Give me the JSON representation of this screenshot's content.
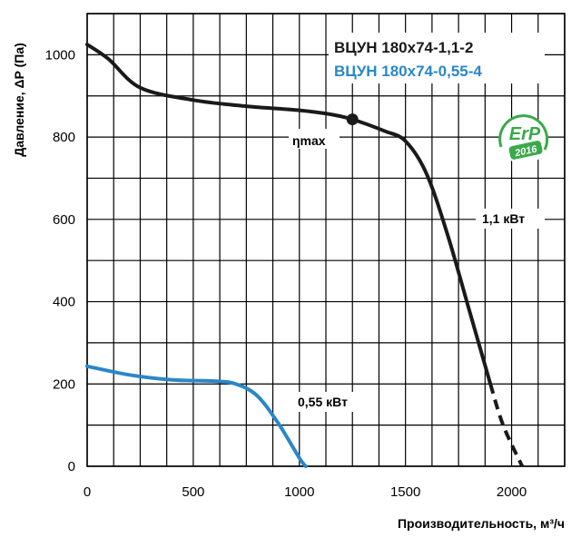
{
  "chart_data": {
    "type": "line",
    "xlabel": "Производительность,  м³/ч",
    "ylabel": "Давление, ΔP (Па)",
    "xlim": [
      0,
      2250
    ],
    "ylim": [
      0,
      1100
    ],
    "x_ticks": [
      0,
      500,
      1000,
      1500,
      2000
    ],
    "y_ticks": [
      0,
      200,
      400,
      600,
      800,
      1000
    ],
    "x_tick_labels": [
      "0",
      "500",
      "1000",
      "1500",
      "2000"
    ],
    "y_tick_labels": [
      "0",
      "200",
      "400",
      "600",
      "800",
      "1000"
    ],
    "grid": true,
    "legend_position": "top-right",
    "series": [
      {
        "name": "ВЦУН 180х74-1,1-2",
        "color": "#1a1a1a",
        "power_label": "1,1 кВт",
        "points": [
          [
            0,
            1025
          ],
          [
            100,
            990
          ],
          [
            250,
            920
          ],
          [
            500,
            890
          ],
          [
            750,
            875
          ],
          [
            1000,
            865
          ],
          [
            1150,
            855
          ],
          [
            1250,
            843
          ],
          [
            1400,
            815
          ],
          [
            1500,
            790
          ],
          [
            1600,
            710
          ],
          [
            1700,
            560
          ],
          [
            1800,
            380
          ],
          [
            1900,
            200
          ]
        ],
        "dashed_points": [
          [
            1900,
            200
          ],
          [
            1960,
            100
          ],
          [
            2050,
            0
          ]
        ]
      },
      {
        "name": "ВЦУН 180х74-0,55-4",
        "color": "#2a87c8",
        "power_label": "0,55 кВт",
        "points": [
          [
            0,
            243
          ],
          [
            200,
            222
          ],
          [
            400,
            210
          ],
          [
            600,
            207
          ],
          [
            700,
            200
          ],
          [
            800,
            172
          ],
          [
            900,
            105
          ],
          [
            1000,
            20
          ],
          [
            1030,
            0
          ]
        ]
      }
    ],
    "annotations": [
      {
        "text": "ηmax",
        "x": 1250,
        "y": 843
      }
    ],
    "badge": {
      "main": "ErP",
      "year": "2016",
      "color": "#3aa94a"
    }
  }
}
